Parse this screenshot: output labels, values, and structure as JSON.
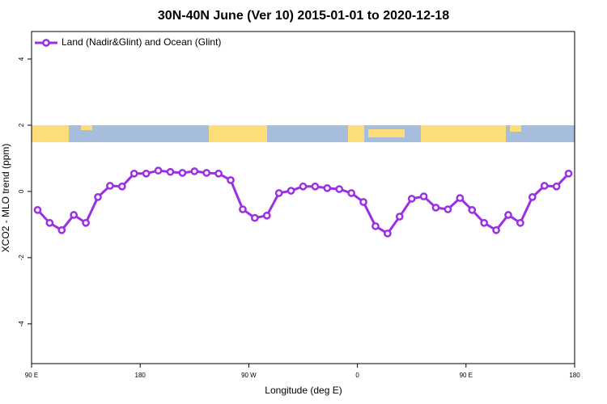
{
  "chart_data": {
    "type": "line",
    "title": "30N-40N June (Ver 10)   2015-01-01 to 2020-12-18",
    "x_label": "Longitude (deg E)",
    "y_label": "XCO2 - MLO trend (ppm)",
    "x": [
      95,
      105,
      115,
      125,
      135,
      145,
      155,
      165,
      175,
      185,
      195,
      205,
      215,
      225,
      235,
      245,
      255,
      265,
      275,
      285,
      295,
      305,
      315,
      325,
      335,
      345,
      355,
      365,
      375,
      385,
      395,
      405,
      415,
      425,
      435,
      445,
      455,
      465,
      475,
      485,
      495,
      505,
      515,
      525,
      535
    ],
    "series": [
      {
        "name": "Land (Nadir&Glint) and Ocean (Glint)",
        "color": "#9b2fe6",
        "values": [
          -0.56,
          -0.95,
          -1.17,
          -0.71,
          -0.95,
          -0.17,
          0.17,
          0.15,
          0.54,
          0.54,
          0.63,
          0.59,
          0.56,
          0.61,
          0.56,
          0.54,
          0.34,
          -0.54,
          -0.8,
          -0.73,
          -0.05,
          0.02,
          0.15,
          0.15,
          0.1,
          0.07,
          -0.05,
          -0.32,
          -1.05,
          -1.27,
          -0.76,
          -0.22,
          -0.15,
          -0.49,
          -0.54,
          -0.2,
          -0.56,
          -0.95,
          -1.17,
          -0.71,
          -0.95,
          -0.17,
          0.17,
          0.15,
          0.54
        ]
      }
    ],
    "xlim": [
      90,
      540
    ],
    "xticks": [
      {
        "value": 90,
        "label": "90 E"
      },
      180,
      {
        "value": 270,
        "label": "90 W"
      },
      {
        "value": 360,
        "label": "0"
      },
      {
        "value": 450,
        "label": "90 E"
      },
      {
        "value": 540,
        "label": "180"
      }
    ],
    "ylim": [
      -5.2,
      4.83
    ],
    "yticks": [
      -4,
      -2,
      0,
      2,
      4
    ],
    "legend": "top-left"
  }
}
